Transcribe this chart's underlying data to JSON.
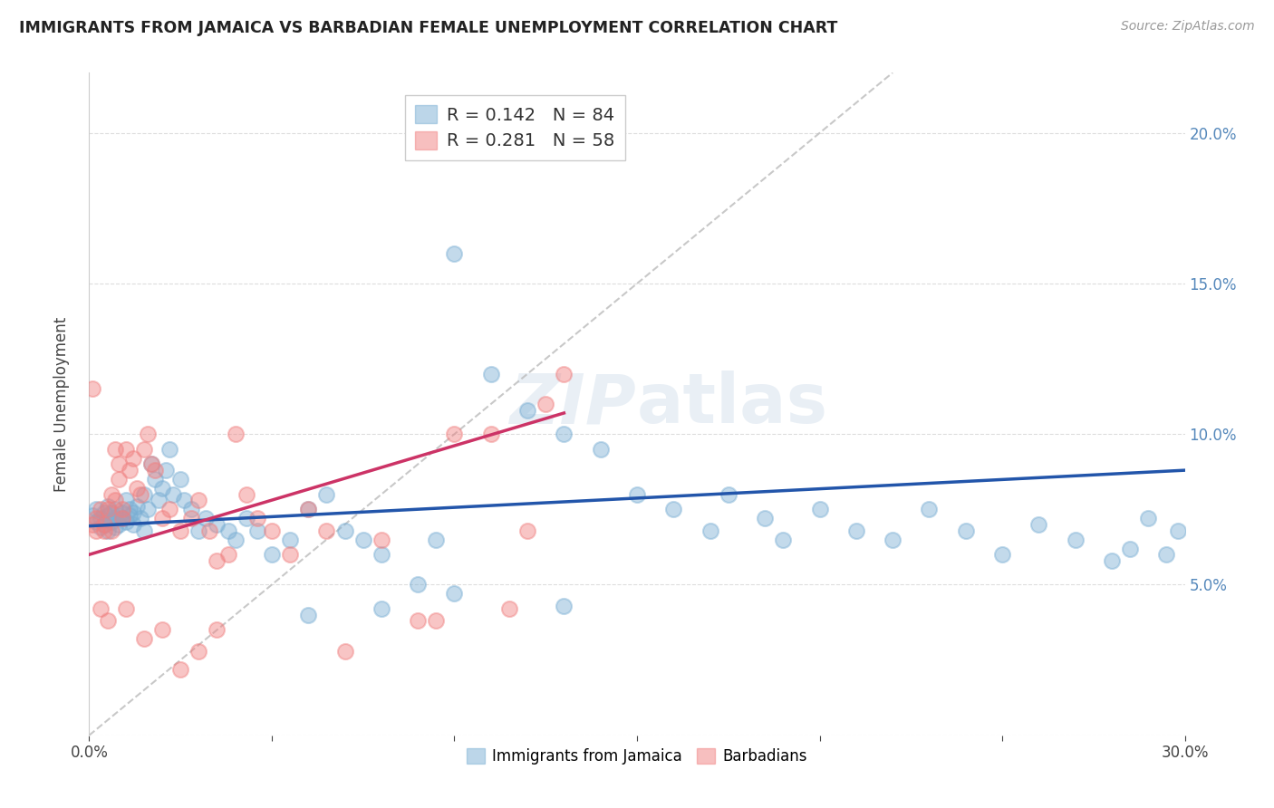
{
  "title": "IMMIGRANTS FROM JAMAICA VS BARBADIAN FEMALE UNEMPLOYMENT CORRELATION CHART",
  "source": "Source: ZipAtlas.com",
  "ylabel": "Female Unemployment",
  "watermark": "ZIPatlas",
  "xlim": [
    0.0,
    0.3
  ],
  "ylim": [
    0.0,
    0.22
  ],
  "color_jamaica": "#7BAFD4",
  "color_barbados": "#F08080",
  "color_line_jamaica": "#2255AA",
  "color_line_barbados": "#CC3366",
  "color_diag": "#BBBBBB",
  "jamaica_x": [
    0.001,
    0.002,
    0.002,
    0.003,
    0.003,
    0.004,
    0.004,
    0.005,
    0.005,
    0.005,
    0.006,
    0.006,
    0.007,
    0.007,
    0.007,
    0.008,
    0.008,
    0.009,
    0.009,
    0.01,
    0.01,
    0.011,
    0.011,
    0.012,
    0.012,
    0.013,
    0.014,
    0.015,
    0.015,
    0.016,
    0.017,
    0.018,
    0.019,
    0.02,
    0.021,
    0.022,
    0.023,
    0.025,
    0.026,
    0.028,
    0.03,
    0.032,
    0.035,
    0.038,
    0.04,
    0.043,
    0.046,
    0.05,
    0.055,
    0.06,
    0.065,
    0.07,
    0.075,
    0.08,
    0.09,
    0.095,
    0.1,
    0.11,
    0.12,
    0.13,
    0.14,
    0.15,
    0.16,
    0.17,
    0.175,
    0.185,
    0.19,
    0.2,
    0.21,
    0.22,
    0.23,
    0.24,
    0.25,
    0.26,
    0.27,
    0.28,
    0.285,
    0.29,
    0.295,
    0.298,
    0.06,
    0.08,
    0.1,
    0.13
  ],
  "jamaica_y": [
    0.073,
    0.071,
    0.075,
    0.069,
    0.072,
    0.074,
    0.07,
    0.073,
    0.068,
    0.076,
    0.071,
    0.074,
    0.072,
    0.069,
    0.075,
    0.073,
    0.07,
    0.072,
    0.074,
    0.078,
    0.071,
    0.075,
    0.073,
    0.07,
    0.074,
    0.076,
    0.072,
    0.08,
    0.068,
    0.075,
    0.09,
    0.085,
    0.078,
    0.082,
    0.088,
    0.095,
    0.08,
    0.085,
    0.078,
    0.075,
    0.068,
    0.072,
    0.07,
    0.068,
    0.065,
    0.072,
    0.068,
    0.06,
    0.065,
    0.075,
    0.08,
    0.068,
    0.065,
    0.06,
    0.05,
    0.065,
    0.16,
    0.12,
    0.108,
    0.1,
    0.095,
    0.08,
    0.075,
    0.068,
    0.08,
    0.072,
    0.065,
    0.075,
    0.068,
    0.065,
    0.075,
    0.068,
    0.06,
    0.07,
    0.065,
    0.058,
    0.062,
    0.072,
    0.06,
    0.068,
    0.04,
    0.042,
    0.047,
    0.043
  ],
  "barbados_x": [
    0.001,
    0.001,
    0.002,
    0.002,
    0.003,
    0.003,
    0.004,
    0.004,
    0.005,
    0.005,
    0.006,
    0.006,
    0.007,
    0.007,
    0.008,
    0.008,
    0.009,
    0.009,
    0.01,
    0.01,
    0.011,
    0.012,
    0.013,
    0.014,
    0.015,
    0.016,
    0.017,
    0.018,
    0.02,
    0.022,
    0.025,
    0.028,
    0.03,
    0.033,
    0.035,
    0.038,
    0.04,
    0.043,
    0.046,
    0.05,
    0.055,
    0.06,
    0.065,
    0.07,
    0.08,
    0.09,
    0.095,
    0.1,
    0.11,
    0.115,
    0.12,
    0.125,
    0.13,
    0.015,
    0.02,
    0.025,
    0.03,
    0.035
  ],
  "barbados_y": [
    0.07,
    0.115,
    0.072,
    0.068,
    0.075,
    0.042,
    0.07,
    0.068,
    0.075,
    0.038,
    0.08,
    0.068,
    0.078,
    0.095,
    0.085,
    0.09,
    0.075,
    0.072,
    0.095,
    0.042,
    0.088,
    0.092,
    0.082,
    0.08,
    0.095,
    0.1,
    0.09,
    0.088,
    0.072,
    0.075,
    0.068,
    0.072,
    0.078,
    0.068,
    0.058,
    0.06,
    0.1,
    0.08,
    0.072,
    0.068,
    0.06,
    0.075,
    0.068,
    0.028,
    0.065,
    0.038,
    0.038,
    0.1,
    0.1,
    0.042,
    0.068,
    0.11,
    0.12,
    0.032,
    0.035,
    0.022,
    0.028,
    0.035
  ],
  "line_j_x0": 0.0,
  "line_j_x1": 0.3,
  "line_j_y0": 0.0695,
  "line_j_y1": 0.088,
  "line_b_x0": 0.0,
  "line_b_x1": 0.13,
  "line_b_y0": 0.06,
  "line_b_y1": 0.107
}
